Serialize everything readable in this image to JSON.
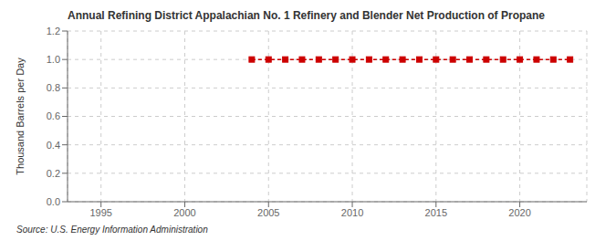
{
  "chart_data": {
    "type": "line",
    "title": "Annual Refining District Appalachian No. 1 Refinery and Blender Net Production of Propane",
    "ylabel": "Thousand Barrels per Day",
    "annotations": [
      "Source: U.S. Energy Information Administration"
    ],
    "x": [
      2004,
      2005,
      2006,
      2007,
      2008,
      2009,
      2010,
      2011,
      2012,
      2013,
      2014,
      2015,
      2016,
      2017,
      2018,
      2019,
      2020,
      2021,
      2022,
      2023
    ],
    "values": [
      1.0,
      1.0,
      1.0,
      1.0,
      1.0,
      1.0,
      1.0,
      1.0,
      1.0,
      1.0,
      1.0,
      1.0,
      1.0,
      1.0,
      1.0,
      1.0,
      1.0,
      1.0,
      1.0,
      1.0
    ],
    "color": "#cc0000",
    "line_style": "dashed",
    "marker": "square",
    "grid": true,
    "xlim": [
      1993,
      2024
    ],
    "xticks": [
      1995,
      2000,
      2005,
      2010,
      2015,
      2020
    ],
    "ylim": [
      0.0,
      1.2
    ],
    "yticks": [
      {
        "value": 0,
        "label": "0.0"
      },
      0.2,
      0.4,
      0.6,
      0.8,
      {
        "value": 1,
        "label": "1.0"
      },
      1.2
    ]
  }
}
